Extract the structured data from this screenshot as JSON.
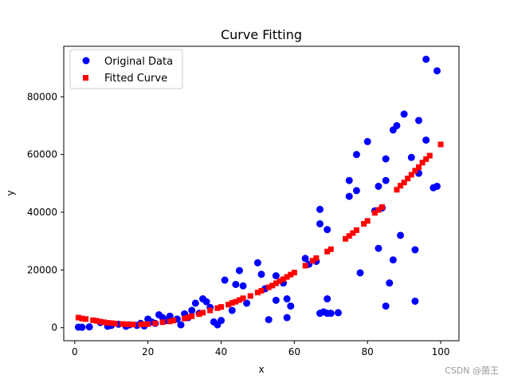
{
  "chart_data": {
    "type": "scatter",
    "title": "Curve Fitting",
    "xlabel": "x",
    "ylabel": "y",
    "xlim": [
      -3,
      105
    ],
    "ylim": [
      -4500,
      97500
    ],
    "xticks": [
      0,
      20,
      40,
      60,
      80,
      100
    ],
    "yticks": [
      0,
      20000,
      40000,
      60000,
      80000
    ],
    "ytick_labels": [
      "0",
      "20000",
      "40000",
      "60000",
      "80000"
    ],
    "grid": false,
    "legend": "top-left",
    "series": [
      {
        "name": "Original Data",
        "marker": "circle",
        "color": "#0000ff",
        "points": [
          [
            1,
            200
          ],
          [
            2,
            150
          ],
          [
            4,
            300
          ],
          [
            7,
            1800
          ],
          [
            9,
            500
          ],
          [
            10,
            800
          ],
          [
            12,
            1200
          ],
          [
            14,
            500
          ],
          [
            15,
            1000
          ],
          [
            17,
            800
          ],
          [
            18,
            1500
          ],
          [
            19,
            600
          ],
          [
            20,
            3000
          ],
          [
            21,
            2000
          ],
          [
            22,
            1500
          ],
          [
            23,
            4500
          ],
          [
            24,
            3500
          ],
          [
            25,
            2500
          ],
          [
            26,
            4000
          ],
          [
            28,
            3000
          ],
          [
            29,
            1000
          ],
          [
            30,
            4800
          ],
          [
            31,
            3500
          ],
          [
            32,
            6000
          ],
          [
            33,
            8500
          ],
          [
            34,
            5000
          ],
          [
            35,
            10000
          ],
          [
            36,
            9000
          ],
          [
            37,
            7000
          ],
          [
            38,
            2000
          ],
          [
            39,
            1000
          ],
          [
            40,
            2500
          ],
          [
            41,
            16500
          ],
          [
            43,
            6000
          ],
          [
            44,
            15000
          ],
          [
            45,
            19800
          ],
          [
            46,
            14500
          ],
          [
            47,
            8500
          ],
          [
            50,
            22500
          ],
          [
            51,
            18500
          ],
          [
            52,
            13500
          ],
          [
            53,
            2800
          ],
          [
            55,
            18000
          ],
          [
            55,
            9500
          ],
          [
            57,
            15500
          ],
          [
            58,
            10000
          ],
          [
            58,
            3500
          ],
          [
            59,
            7500
          ],
          [
            63,
            24000
          ],
          [
            64,
            22000
          ],
          [
            66,
            23000
          ],
          [
            67,
            41000
          ],
          [
            67,
            36000
          ],
          [
            67,
            5000
          ],
          [
            68,
            5500
          ],
          [
            69,
            5000
          ],
          [
            69,
            10000
          ],
          [
            69,
            34000
          ],
          [
            70,
            5000
          ],
          [
            72,
            5200
          ],
          [
            75,
            45500
          ],
          [
            75,
            51000
          ],
          [
            77,
            47500
          ],
          [
            77,
            60000
          ],
          [
            78,
            19000
          ],
          [
            80,
            64500
          ],
          [
            82,
            40500
          ],
          [
            83,
            49000
          ],
          [
            83,
            27500
          ],
          [
            84,
            41500
          ],
          [
            85,
            51000
          ],
          [
            85,
            58500
          ],
          [
            85,
            7500
          ],
          [
            86,
            15500
          ],
          [
            87,
            23500
          ],
          [
            87,
            68500
          ],
          [
            88,
            70000
          ],
          [
            89,
            32000
          ],
          [
            90,
            74000
          ],
          [
            92,
            59000
          ],
          [
            93,
            27000
          ],
          [
            93,
            9200
          ],
          [
            94,
            71800
          ],
          [
            94,
            53500
          ],
          [
            96,
            65000
          ],
          [
            96,
            93000
          ],
          [
            98,
            48500
          ],
          [
            99,
            49000
          ],
          [
            99,
            89000
          ]
        ]
      },
      {
        "name": "Fitted Curve",
        "marker": "square",
        "color": "#ff0000",
        "points": [
          [
            1,
            3500
          ],
          [
            2,
            3200
          ],
          [
            3,
            3000
          ],
          [
            5,
            2600
          ],
          [
            6,
            2400
          ],
          [
            7,
            2100
          ],
          [
            8,
            1900
          ],
          [
            9,
            1700
          ],
          [
            10,
            1600
          ],
          [
            11,
            1450
          ],
          [
            13,
            1300
          ],
          [
            14,
            1200
          ],
          [
            15,
            1150
          ],
          [
            16,
            1120
          ],
          [
            18,
            1150
          ],
          [
            19,
            1200
          ],
          [
            20,
            1250
          ],
          [
            22,
            1500
          ],
          [
            24,
            1900
          ],
          [
            26,
            2200
          ],
          [
            27,
            2500
          ],
          [
            30,
            3200
          ],
          [
            31,
            3600
          ],
          [
            32,
            4000
          ],
          [
            34,
            4700
          ],
          [
            35,
            5200
          ],
          [
            37,
            6000
          ],
          [
            39,
            6800
          ],
          [
            40,
            7200
          ],
          [
            42,
            8000
          ],
          [
            43,
            8600
          ],
          [
            44,
            9000
          ],
          [
            45,
            9600
          ],
          [
            46,
            10200
          ],
          [
            48,
            11000
          ],
          [
            50,
            12200
          ],
          [
            51,
            12800
          ],
          [
            53,
            14000
          ],
          [
            54,
            14600
          ],
          [
            55,
            15400
          ],
          [
            56,
            16200
          ],
          [
            57,
            16800
          ],
          [
            58,
            17600
          ],
          [
            59,
            18400
          ],
          [
            60,
            19100
          ],
          [
            63,
            21500
          ],
          [
            65,
            23200
          ],
          [
            66,
            24100
          ],
          [
            69,
            26400
          ],
          [
            70,
            27200
          ],
          [
            74,
            30800
          ],
          [
            75,
            31800
          ],
          [
            76,
            32800
          ],
          [
            77,
            33800
          ],
          [
            79,
            36000
          ],
          [
            80,
            37000
          ],
          [
            82,
            39800
          ],
          [
            83,
            40800
          ],
          [
            84,
            41800
          ],
          [
            88,
            47800
          ],
          [
            89,
            49200
          ],
          [
            90,
            50300
          ],
          [
            91,
            51700
          ],
          [
            92,
            53000
          ],
          [
            93,
            54400
          ],
          [
            94,
            55600
          ],
          [
            95,
            57200
          ],
          [
            96,
            58400
          ],
          [
            97,
            59600
          ],
          [
            100,
            63500
          ]
        ]
      }
    ]
  },
  "watermark": "CSDN @菌王"
}
